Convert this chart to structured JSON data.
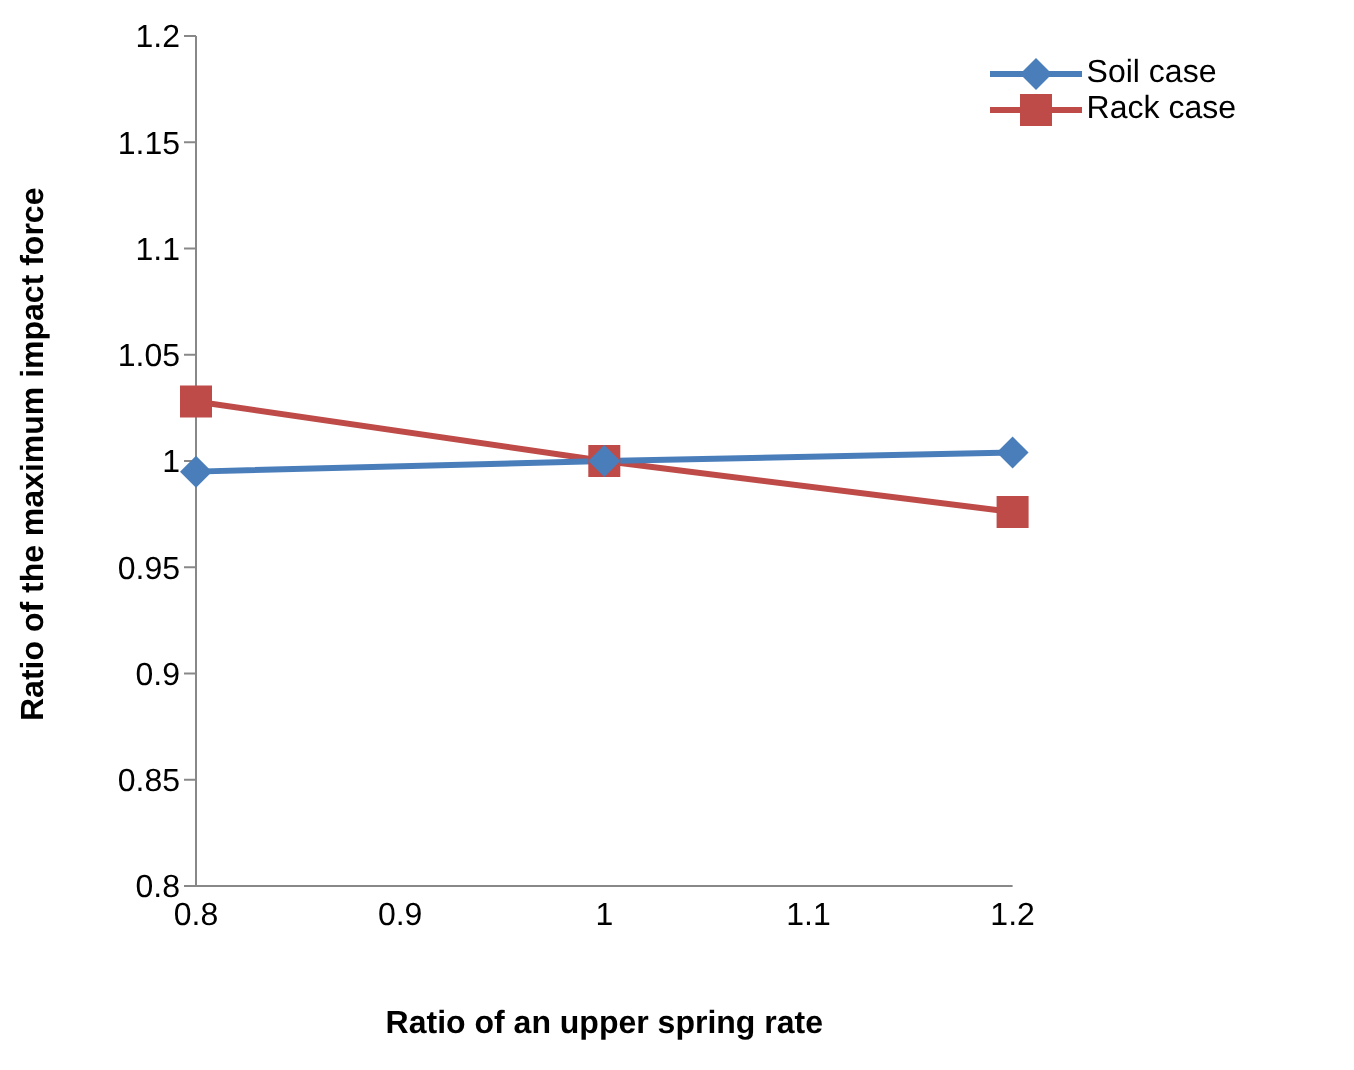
{
  "chart_data": {
    "type": "line",
    "xlabel": "Ratio of an upper spring rate",
    "ylabel": "Ratio of the maximum impact force",
    "x": [
      0.8,
      1,
      1.2
    ],
    "series": [
      {
        "name": "Soil case",
        "color": "#4a7ebb",
        "marker": "diamond",
        "values": [
          0.995,
          1.0,
          1.004
        ]
      },
      {
        "name": "Rack case",
        "color": "#be4b48",
        "marker": "square",
        "values": [
          1.028,
          1.0,
          0.976
        ]
      }
    ],
    "xlim": [
      0.8,
      1.2
    ],
    "xticks": [
      0.8,
      0.9,
      1,
      1.1,
      1.2
    ],
    "ylim": [
      0.8,
      1.2
    ],
    "yticks": [
      0.8,
      0.85,
      0.9,
      0.95,
      1,
      1.05,
      1.1,
      1.15,
      1.2
    ],
    "legend": "top right",
    "grid": false
  }
}
